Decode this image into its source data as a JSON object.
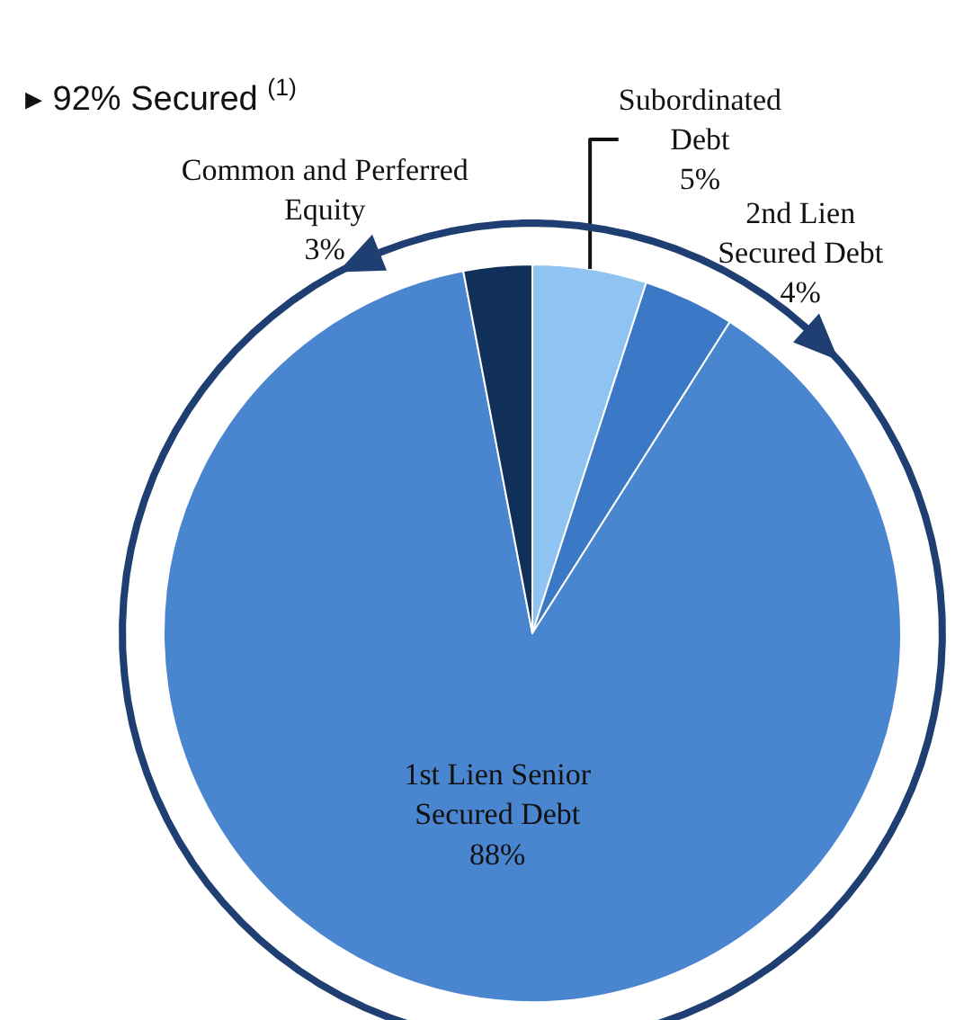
{
  "chart_data": {
    "type": "pie",
    "categories": [
      "Subordinated\nDebt",
      "2nd Lien\nSecured Debt",
      "1st Lien Senior\nSecured Debt",
      "Common and Perferred\nEquity"
    ],
    "values": [
      5,
      4,
      88,
      3
    ],
    "colors": [
      "#8fc3f2",
      "#3b78c6",
      "#4a86d0",
      "#10305a"
    ],
    "value_labels": [
      "5%",
      "4%",
      "88%",
      "3%"
    ],
    "legend": false,
    "annotations": [
      "▸ 92% Secured $^{(1)}$"
    ]
  }
}
